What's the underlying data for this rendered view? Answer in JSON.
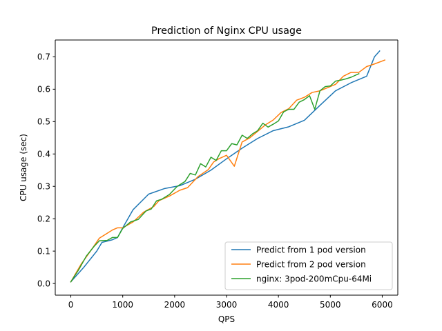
{
  "chart_data": {
    "type": "line",
    "title": "Prediction of Nginx CPU usage",
    "xlabel": "QPS",
    "ylabel": "CPU usage (sec)",
    "xlim": [
      -300,
      6300
    ],
    "ylim": [
      -0.036,
      0.752
    ],
    "xticks": [
      0,
      1000,
      2000,
      3000,
      4000,
      5000,
      6000
    ],
    "xtick_labels": [
      "0",
      "1000",
      "2000",
      "3000",
      "4000",
      "5000",
      "6000"
    ],
    "yticks": [
      0.0,
      0.1,
      0.2,
      0.3,
      0.4,
      0.5,
      0.6,
      0.7
    ],
    "ytick_labels": [
      "0.0",
      "0.1",
      "0.2",
      "0.3",
      "0.4",
      "0.5",
      "0.6",
      "0.7"
    ],
    "grid": false,
    "legend_position": "lower-right",
    "series": [
      {
        "name": "Predict from 1 pod version",
        "color": "#1f77b4",
        "points": [
          [
            0,
            0.005
          ],
          [
            250,
            0.05
          ],
          [
            500,
            0.1
          ],
          [
            600,
            0.127
          ],
          [
            800,
            0.135
          ],
          [
            900,
            0.142
          ],
          [
            1000,
            0.172
          ],
          [
            1200,
            0.228
          ],
          [
            1500,
            0.276
          ],
          [
            1800,
            0.293
          ],
          [
            2100,
            0.302
          ],
          [
            2400,
            0.322
          ],
          [
            2700,
            0.35
          ],
          [
            3000,
            0.385
          ],
          [
            3300,
            0.418
          ],
          [
            3600,
            0.448
          ],
          [
            3900,
            0.472
          ],
          [
            4200,
            0.484
          ],
          [
            4500,
            0.504
          ],
          [
            4800,
            0.55
          ],
          [
            5100,
            0.595
          ],
          [
            5400,
            0.62
          ],
          [
            5700,
            0.64
          ],
          [
            5850,
            0.7
          ],
          [
            5950,
            0.718
          ]
        ]
      },
      {
        "name": "Predict from 2 pod version",
        "color": "#ff7f0e",
        "points": [
          [
            0,
            0.005
          ],
          [
            200,
            0.06
          ],
          [
            400,
            0.105
          ],
          [
            550,
            0.14
          ],
          [
            800,
            0.165
          ],
          [
            900,
            0.172
          ],
          [
            1000,
            0.172
          ],
          [
            1200,
            0.19
          ],
          [
            1400,
            0.22
          ],
          [
            1600,
            0.238
          ],
          [
            1700,
            0.256
          ],
          [
            1900,
            0.27
          ],
          [
            2100,
            0.288
          ],
          [
            2250,
            0.296
          ],
          [
            2450,
            0.33
          ],
          [
            2650,
            0.352
          ],
          [
            2750,
            0.375
          ],
          [
            2850,
            0.385
          ],
          [
            3000,
            0.396
          ],
          [
            3150,
            0.362
          ],
          [
            3300,
            0.437
          ],
          [
            3450,
            0.45
          ],
          [
            3600,
            0.47
          ],
          [
            3750,
            0.49
          ],
          [
            3900,
            0.505
          ],
          [
            4050,
            0.528
          ],
          [
            4200,
            0.54
          ],
          [
            4350,
            0.566
          ],
          [
            4500,
            0.575
          ],
          [
            4650,
            0.59
          ],
          [
            4800,
            0.595
          ],
          [
            4950,
            0.605
          ],
          [
            5100,
            0.615
          ],
          [
            5250,
            0.64
          ],
          [
            5400,
            0.652
          ],
          [
            5550,
            0.652
          ],
          [
            5700,
            0.67
          ],
          [
            5850,
            0.678
          ],
          [
            6050,
            0.69
          ]
        ]
      },
      {
        "name": "nginx: 3pod-200mCpu-64Mi",
        "color": "#2ca02c",
        "points": [
          [
            0,
            0.005
          ],
          [
            150,
            0.042
          ],
          [
            300,
            0.085
          ],
          [
            450,
            0.115
          ],
          [
            550,
            0.132
          ],
          [
            700,
            0.133
          ],
          [
            800,
            0.142
          ],
          [
            900,
            0.142
          ],
          [
            1000,
            0.17
          ],
          [
            1150,
            0.19
          ],
          [
            1300,
            0.198
          ],
          [
            1450,
            0.224
          ],
          [
            1550,
            0.23
          ],
          [
            1650,
            0.255
          ],
          [
            1750,
            0.26
          ],
          [
            1900,
            0.275
          ],
          [
            2050,
            0.3
          ],
          [
            2200,
            0.315
          ],
          [
            2300,
            0.34
          ],
          [
            2400,
            0.335
          ],
          [
            2500,
            0.37
          ],
          [
            2600,
            0.36
          ],
          [
            2700,
            0.39
          ],
          [
            2800,
            0.38
          ],
          [
            2900,
            0.41
          ],
          [
            3000,
            0.41
          ],
          [
            3100,
            0.432
          ],
          [
            3200,
            0.428
          ],
          [
            3300,
            0.458
          ],
          [
            3400,
            0.448
          ],
          [
            3500,
            0.462
          ],
          [
            3600,
            0.472
          ],
          [
            3700,
            0.495
          ],
          [
            3800,
            0.483
          ],
          [
            3900,
            0.492
          ],
          [
            4000,
            0.502
          ],
          [
            4100,
            0.53
          ],
          [
            4200,
            0.538
          ],
          [
            4300,
            0.538
          ],
          [
            4400,
            0.56
          ],
          [
            4500,
            0.568
          ],
          [
            4600,
            0.58
          ],
          [
            4700,
            0.538
          ],
          [
            4800,
            0.595
          ],
          [
            4900,
            0.608
          ],
          [
            5000,
            0.61
          ],
          [
            5100,
            0.625
          ],
          [
            5200,
            0.628
          ],
          [
            5300,
            0.632
          ],
          [
            5400,
            0.637
          ],
          [
            5550,
            0.648
          ]
        ]
      }
    ]
  }
}
